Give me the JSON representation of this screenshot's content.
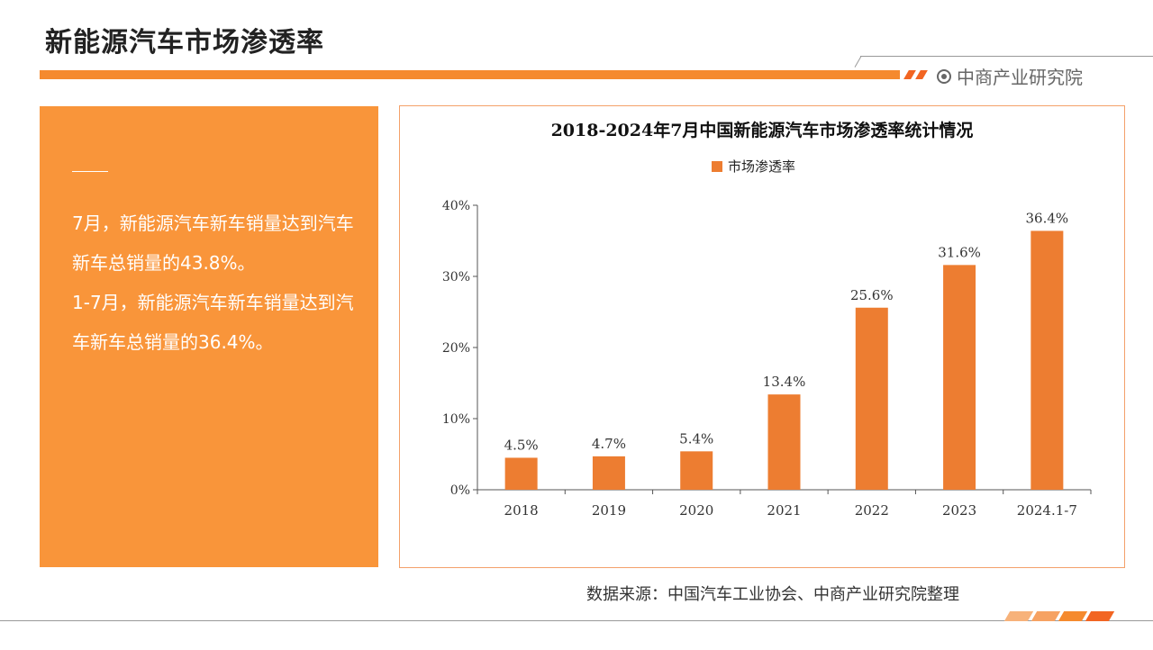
{
  "page": {
    "title": "新能源汽车市场渗透率",
    "brand": "中商产业研究院",
    "source": "数据来源：中国汽车工业协会、中商产业研究院整理"
  },
  "side": {
    "paragraphs": [
      "7月，新能源汽车新车销量达到汽车新车总销量的43.8%。",
      "1-7月，新能源汽车新车销量达到汽车新车总销量的36.4%。"
    ]
  },
  "colors": {
    "accent": "#f58a2e",
    "panel": "#f9953a",
    "bar": "#ed7d31",
    "box_border": "#f4a16a"
  },
  "chart_data": {
    "type": "bar",
    "title": "2018-2024年7月中国新能源汽车市场渗透率统计情况",
    "categories": [
      "2018",
      "2019",
      "2020",
      "2021",
      "2022",
      "2023",
      "2024.1-7"
    ],
    "series": [
      {
        "name": "市场渗透率",
        "values": [
          4.5,
          4.7,
          5.4,
          13.4,
          25.6,
          31.6,
          36.4
        ]
      }
    ],
    "value_labels": [
      "4.5%",
      "4.7%",
      "5.4%",
      "13.4%",
      "25.6%",
      "31.6%",
      "36.4%"
    ],
    "y_ticks": [
      "0%",
      "10%",
      "20%",
      "30%",
      "40%"
    ],
    "ylim": [
      0,
      40
    ],
    "legend_position": "top",
    "grid": false,
    "xlabel": "",
    "ylabel": ""
  }
}
